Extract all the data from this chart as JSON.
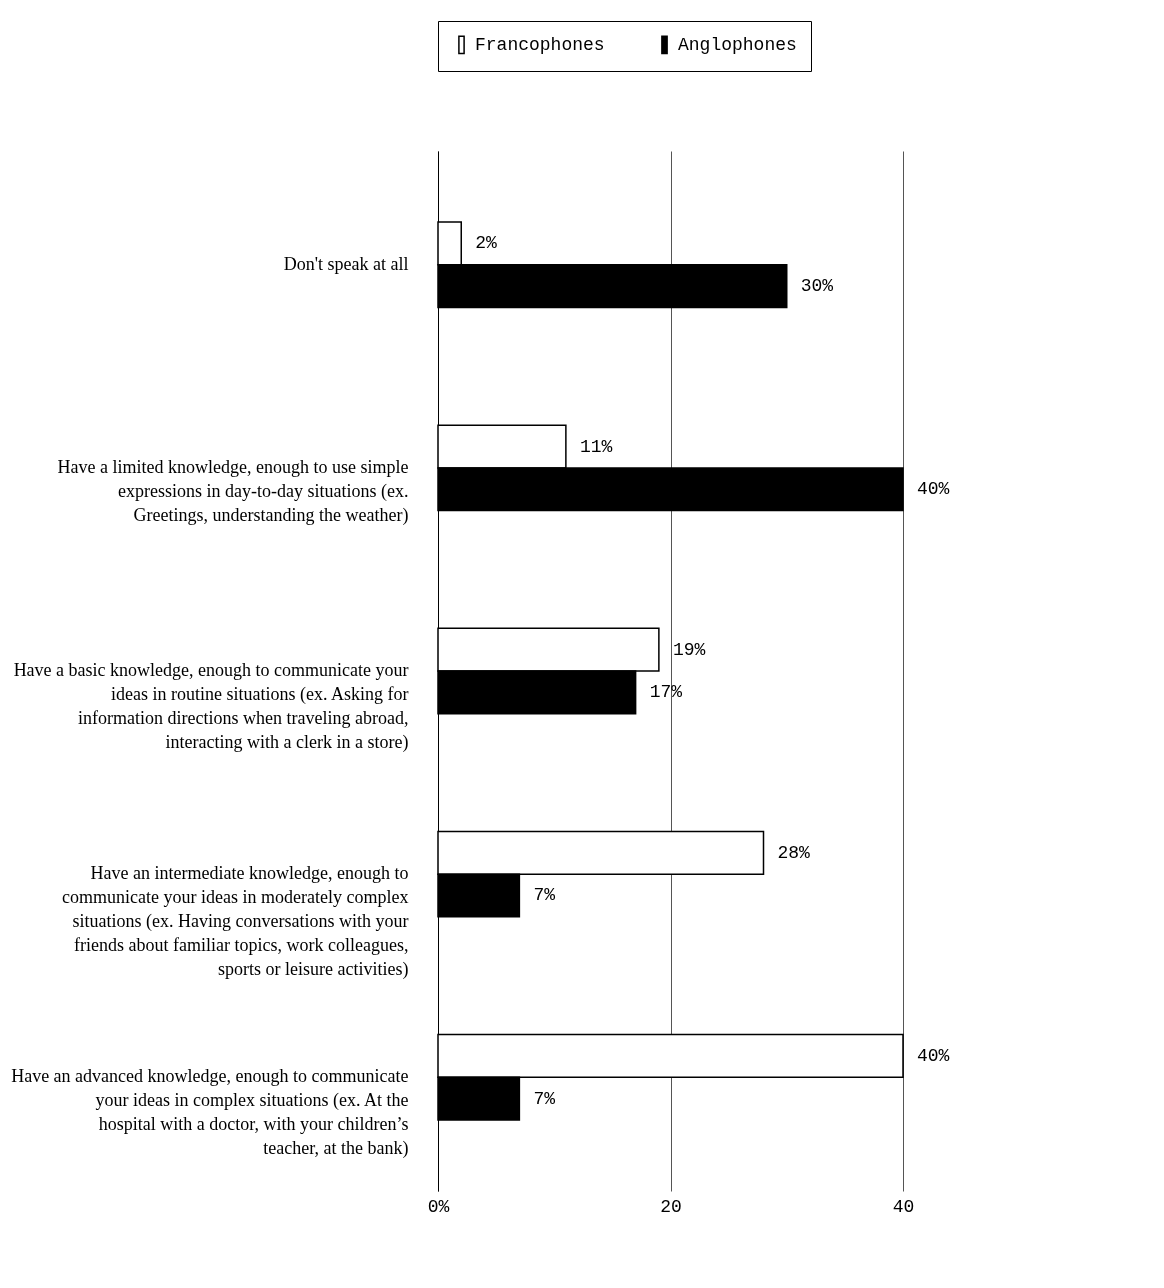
{
  "chart_data": {
    "type": "bar",
    "orientation": "horizontal",
    "categories": [
      "Don't speak at all",
      "Have a limited knowledge, enough to use simple expressions in day-to-day situations (ex. Greetings, understanding the weather)",
      "Have a basic knowledge, enough to communicate your ideas in routine situations (ex. Asking for information directions when traveling abroad, interacting with a clerk in a store)",
      "Have an intermediate knowledge, enough to communicate your ideas in moderately complex situations (ex. Having conversations with your friends about familiar topics, work colleagues, sports or leisure activities)",
      "Have an advanced knowledge, enough to communicate your ideas in complex situations (ex. At the hospital with a doctor, with your children’s teacher, at the bank)"
    ],
    "series": [
      {
        "name": "Francophones",
        "color": "#ffffff",
        "values": [
          2,
          11,
          19,
          28,
          40
        ],
        "value_labels": [
          "2%",
          "11%",
          "19%",
          "28%",
          "40%"
        ]
      },
      {
        "name": "Anglophones",
        "color": "#000000",
        "values": [
          30,
          40,
          17,
          7,
          7
        ],
        "value_labels": [
          "30%",
          "40%",
          "17%",
          "7%",
          "7%"
        ]
      }
    ],
    "xlim": [
      0,
      40
    ],
    "xticks": [
      {
        "value": 0,
        "label": "0%"
      },
      20,
      40
    ],
    "grid": "x",
    "legend": "top"
  }
}
